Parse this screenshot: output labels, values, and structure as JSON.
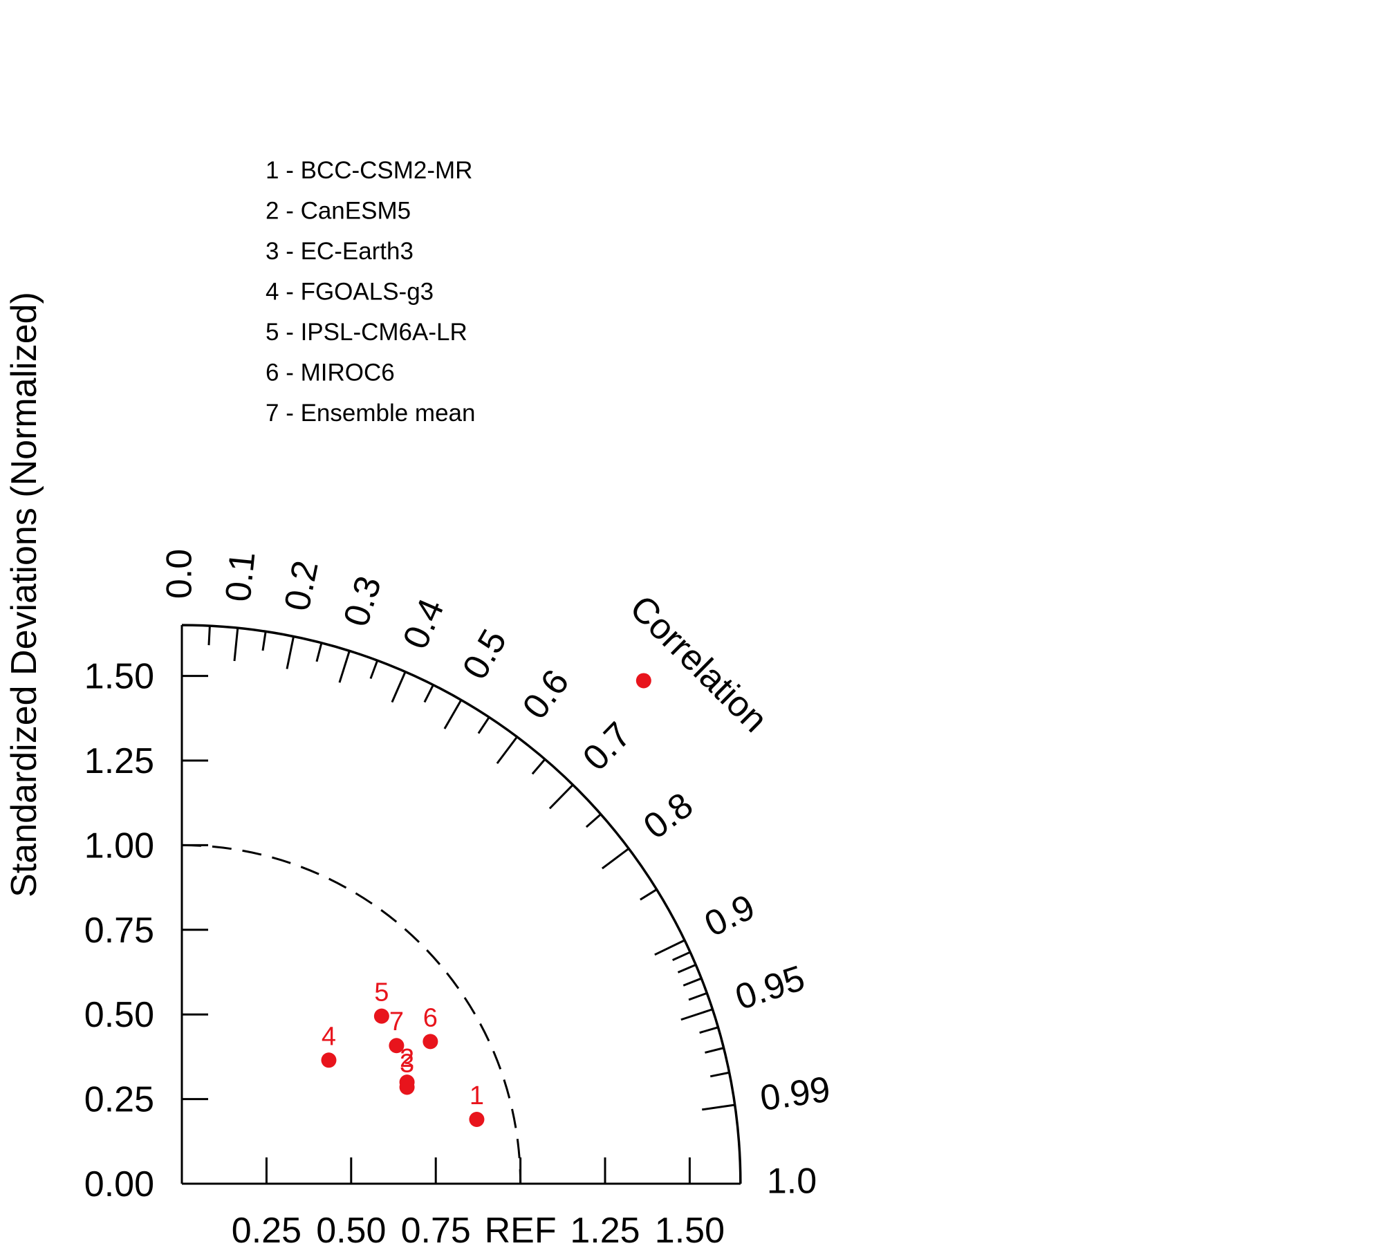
{
  "chart_data": {
    "type": "scatter",
    "subtype": "taylor-diagram",
    "ylabel": "Standardized Deviations (Normalized)",
    "corr_axis_label": "Correlation",
    "std_range": [
      0,
      1.65
    ],
    "std_ticks": [
      0.25,
      0.5,
      0.75,
      1.0,
      1.25,
      1.5
    ],
    "std_tick_labels_y": [
      "0.00",
      "0.25",
      "0.50",
      "0.75",
      "1.00",
      "1.25",
      "1.50"
    ],
    "std_tick_labels_x": [
      "0.25",
      "0.50",
      "0.75",
      "REF",
      "1.25",
      "1.50"
    ],
    "corr_tick_labels": [
      "0.0",
      "0.1",
      "0.2",
      "0.3",
      "0.4",
      "0.5",
      "0.6",
      "0.7",
      "0.8",
      "0.9",
      "0.95",
      "0.99",
      "1.0"
    ],
    "corr_minor_ticks": [
      0.05,
      0.15,
      0.25,
      0.35,
      0.45,
      0.55,
      0.65,
      0.75,
      0.85,
      0.91,
      0.92,
      0.93,
      0.94,
      0.96,
      0.97,
      0.98
    ],
    "ref_std": 1.0,
    "point_color": "#e8141c",
    "legend": [
      "1 - BCC-CSM2-MR",
      "2 - CanESM5",
      "3 - EC-Earth3",
      "4 - FGOALS-g3",
      "5 - IPSL-CM6A-LR",
      "6 - MIROC6",
      "7 - Ensemble mean"
    ],
    "points": [
      {
        "label": "1",
        "x": 0.871,
        "y": 0.19
      },
      {
        "label": "2",
        "x": 0.665,
        "y": 0.3
      },
      {
        "label": "3",
        "x": 0.665,
        "y": 0.285
      },
      {
        "label": "4",
        "x": 0.434,
        "y": 0.365
      },
      {
        "label": "5",
        "x": 0.59,
        "y": 0.495
      },
      {
        "label": "6",
        "x": 0.734,
        "y": 0.42
      },
      {
        "label": "7",
        "x": 0.634,
        "y": 0.408
      },
      {
        "label": "",
        "x": 1.364,
        "y": 1.486
      }
    ]
  }
}
